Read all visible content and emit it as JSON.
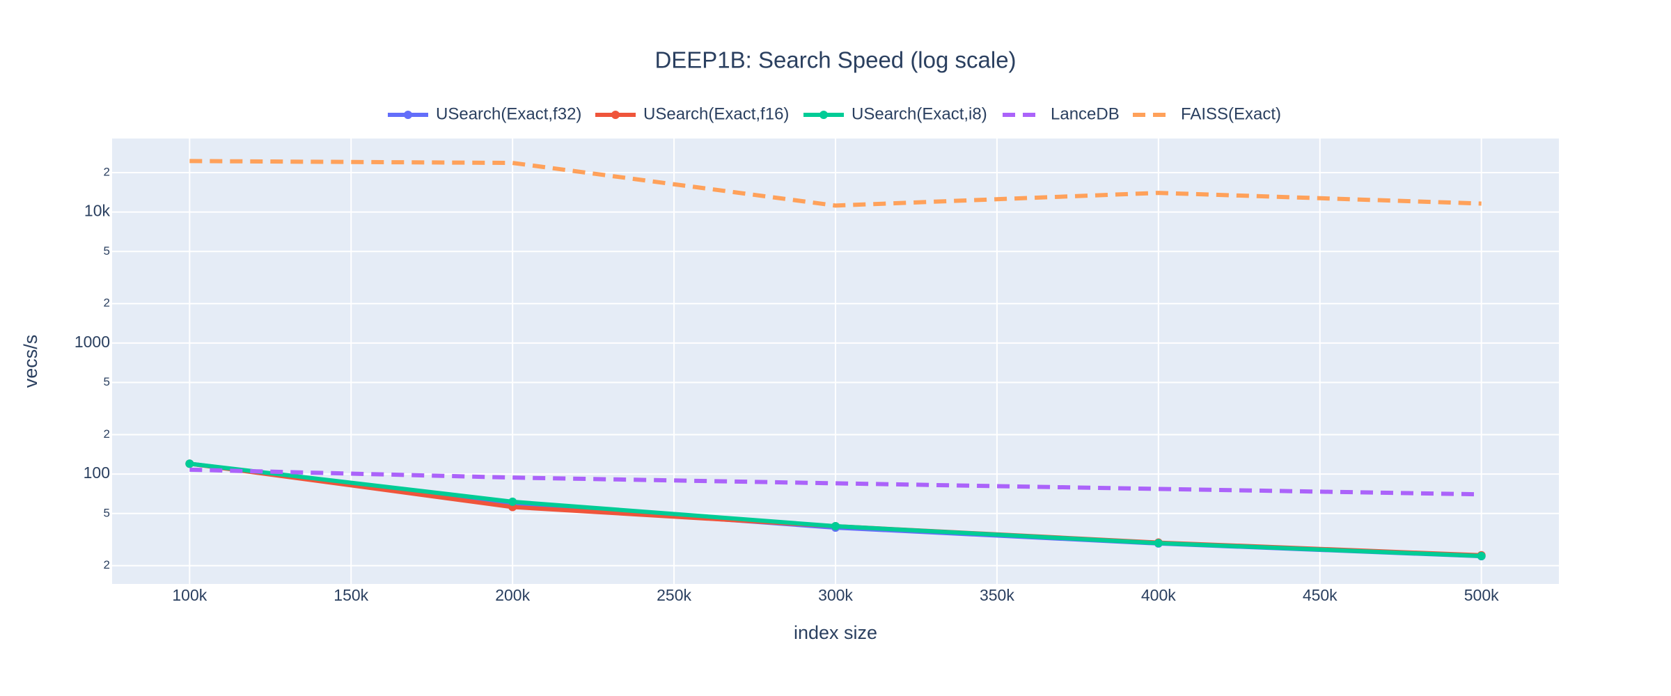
{
  "chart_data": {
    "type": "line",
    "title": "DEEP1B: Search Speed (log scale)",
    "x_label": "index size",
    "y_label": "vecs/s",
    "x": [
      100000,
      200000,
      300000,
      400000,
      500000
    ],
    "series": [
      {
        "name": "USearch(Exact,f32)",
        "color": "#636efa",
        "dash": "solid",
        "markers": true,
        "values": [
          120,
          59,
          39,
          29.5,
          23.6
        ]
      },
      {
        "name": "USearch(Exact,f16)",
        "color": "#ef553b",
        "dash": "solid",
        "markers": true,
        "values": [
          120,
          56,
          40,
          30,
          24
        ]
      },
      {
        "name": "USearch(Exact,i8)",
        "color": "#00cc96",
        "dash": "solid",
        "markers": true,
        "values": [
          120,
          61.5,
          40,
          29.7,
          23.7
        ]
      },
      {
        "name": "LanceDB",
        "color": "#ab63fa",
        "dash": "dash",
        "markers": false,
        "values": [
          108,
          94,
          85,
          77,
          70
        ]
      },
      {
        "name": "FAISS(Exact)",
        "color": "#ffa15a",
        "dash": "dash",
        "markers": false,
        "values": [
          24500,
          23700,
          11200,
          14000,
          11600
        ]
      }
    ],
    "xlim": [
      76000,
      524000
    ],
    "xticks": [
      {
        "value": 100000,
        "label": "100k"
      },
      {
        "value": 150000,
        "label": "150k"
      },
      {
        "value": 200000,
        "label": "200k"
      },
      {
        "value": 250000,
        "label": "250k"
      },
      {
        "value": 300000,
        "label": "300k"
      },
      {
        "value": 350000,
        "label": "350k"
      },
      {
        "value": 400000,
        "label": "400k"
      },
      {
        "value": 450000,
        "label": "450k"
      },
      {
        "value": 500000,
        "label": "500k"
      }
    ],
    "ylim": [
      14.5,
      36400
    ],
    "log_y": true,
    "grid": true,
    "yticks": [
      {
        "value": 20,
        "label": "2"
      },
      {
        "value": 50,
        "label": "5"
      },
      100,
      {
        "value": 200,
        "label": "2"
      },
      {
        "value": 500,
        "label": "5"
      },
      1000,
      {
        "value": 2000,
        "label": "2"
      },
      {
        "value": 5000,
        "label": "5"
      },
      {
        "value": 10000,
        "label": "10k"
      },
      {
        "value": 20000,
        "label": "2"
      }
    ],
    "legend_position": "top"
  }
}
